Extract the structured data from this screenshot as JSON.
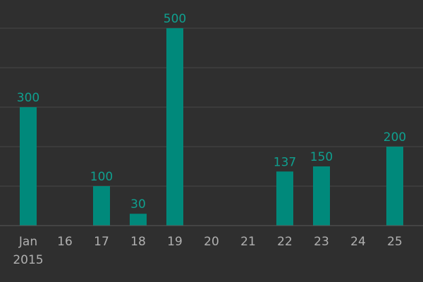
{
  "chart_data": {
    "type": "bar",
    "categories": [
      "Jan",
      "16",
      "17",
      "18",
      "19",
      "20",
      "21",
      "22",
      "23",
      "24",
      "25"
    ],
    "first_category_sublabel": "2015",
    "values": [
      300,
      0,
      100,
      30,
      500,
      0,
      0,
      137,
      150,
      0,
      200
    ],
    "data_labels": [
      "300",
      "",
      "100",
      "30",
      "500",
      "",
      "",
      "137",
      "150",
      "",
      "200"
    ],
    "title": "",
    "xlabel": "",
    "ylabel": "",
    "ylim": [
      0,
      500
    ],
    "grid": true,
    "legend": "none",
    "colors": {
      "bar": "#00897b",
      "label": "#0fa08f",
      "background": "#2f2f2f"
    }
  }
}
